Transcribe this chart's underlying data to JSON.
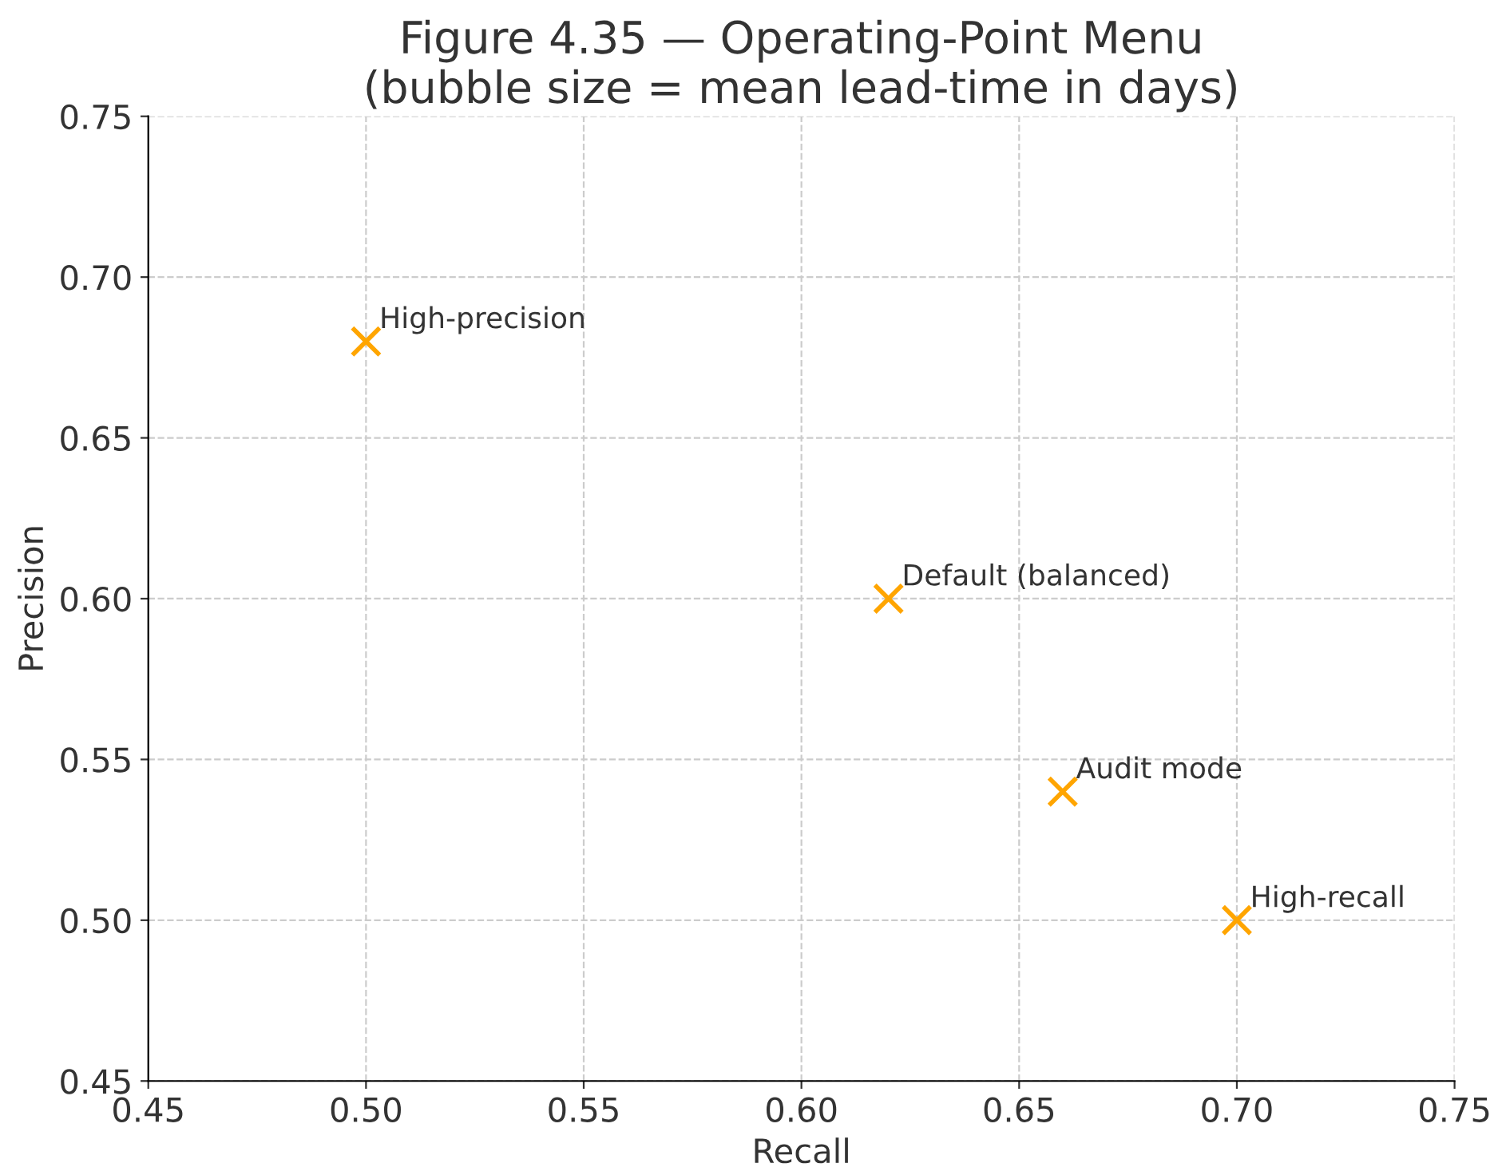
{
  "chart_data": {
    "type": "scatter",
    "title": "Figure 4.35 — Operating-Point Menu\n(bubble size = mean lead-time in days)",
    "xlabel": "Recall",
    "ylabel": "Precision",
    "x": [
      0.5,
      0.62,
      0.66,
      0.7
    ],
    "series": [
      {
        "color": "#ffa500",
        "values": [
          0.68,
          0.6,
          0.54,
          0.5
        ]
      }
    ],
    "annotations": [
      {
        "text": "High-precision",
        "x": 0.5,
        "y": 0.68
      },
      {
        "text": "Default (balanced)",
        "x": 0.62,
        "y": 0.6
      },
      {
        "text": "Audit mode",
        "x": 0.66,
        "y": 0.54
      },
      {
        "text": "High-recall",
        "x": 0.7,
        "y": 0.5
      }
    ],
    "xlim": [
      0.45,
      0.75
    ],
    "ylim": [
      0.45,
      0.75
    ],
    "xticks": [
      {
        "value": 0.45,
        "label": "0.45"
      },
      {
        "value": 0.5,
        "label": "0.50"
      },
      {
        "value": 0.55,
        "label": "0.55"
      },
      {
        "value": 0.6,
        "label": "0.60"
      },
      {
        "value": 0.65,
        "label": "0.65"
      },
      {
        "value": 0.7,
        "label": "0.70"
      },
      {
        "value": 0.75,
        "label": "0.75"
      }
    ],
    "yticks": [
      {
        "value": 0.45,
        "label": "0.45"
      },
      {
        "value": 0.5,
        "label": "0.50"
      },
      {
        "value": 0.55,
        "label": "0.55"
      },
      {
        "value": 0.6,
        "label": "0.60"
      },
      {
        "value": 0.65,
        "label": "0.65"
      },
      {
        "value": 0.7,
        "label": "0.70"
      },
      {
        "value": 0.75,
        "label": "0.75"
      }
    ],
    "grid": true,
    "marker": "cross",
    "legend": false
  }
}
